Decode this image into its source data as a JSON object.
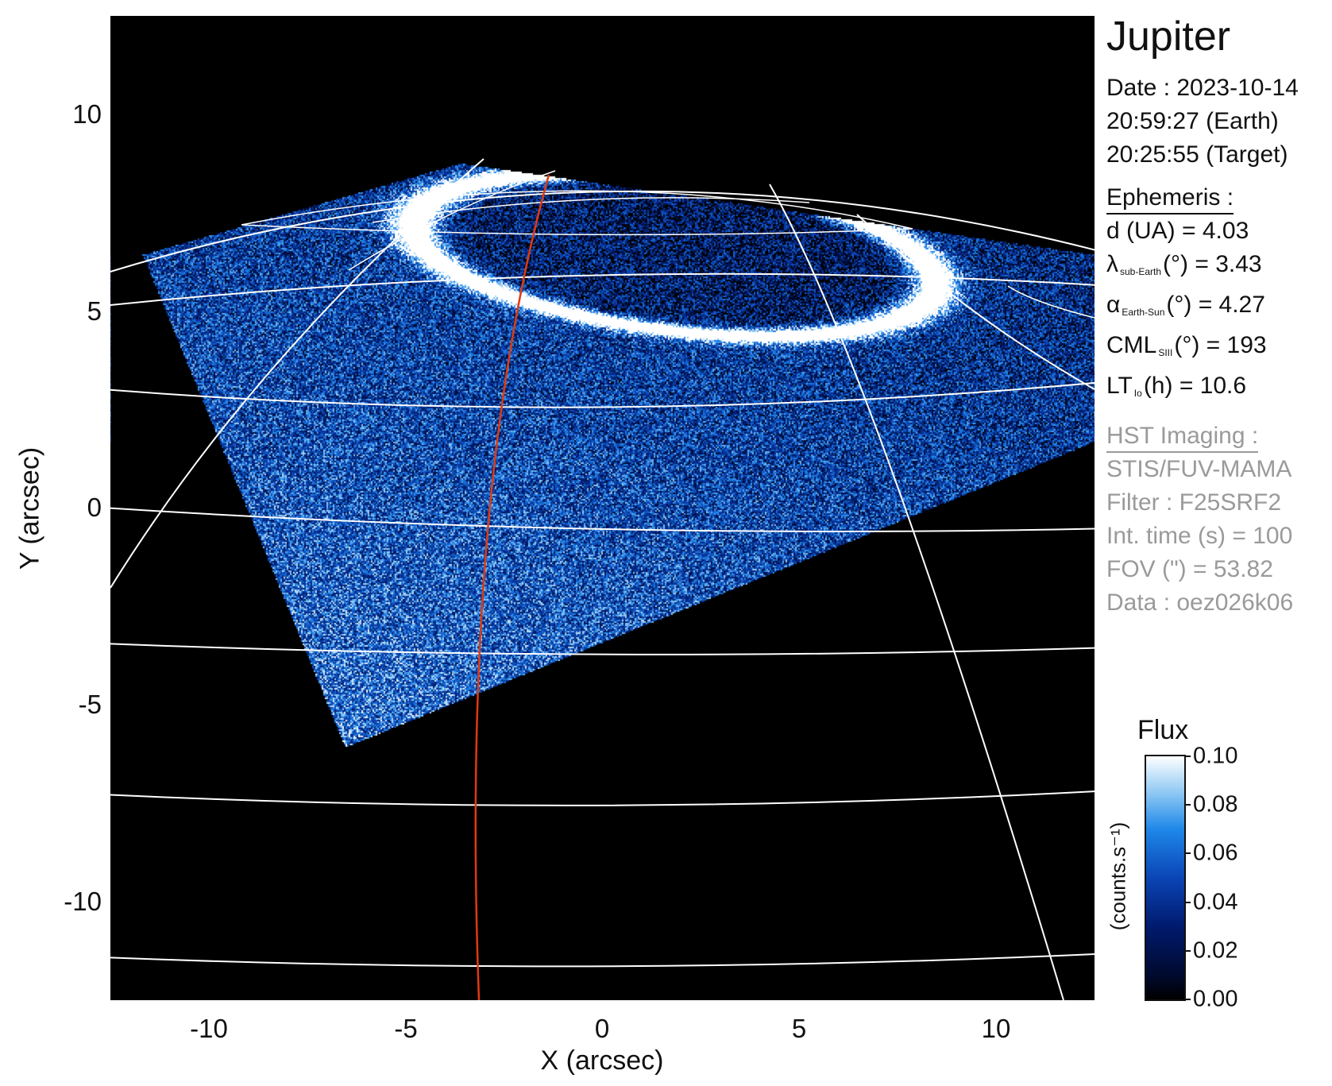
{
  "figure": {
    "title": "Jupiter",
    "xlabel": "X (arcsec)",
    "ylabel": "Y (arcsec)",
    "xlim": [
      -12.5,
      12.5
    ],
    "ylim": [
      -12.5,
      12.5
    ],
    "xticks": [
      "-10",
      "-5",
      "0",
      "5",
      "10"
    ],
    "yticks": [
      "10",
      "5",
      "0",
      "-5",
      "-10"
    ]
  },
  "observation": {
    "date": "Date : 2023-10-14",
    "time_earth": "20:59:27 (Earth)",
    "time_target": "20:25:55 (Target)"
  },
  "ephemeris": {
    "header": "Ephemeris :",
    "distance": "d (UA)    = 4.03",
    "lat_symbol": "λ",
    "lat_sub": "sub-Earth",
    "lat_value": "(°) = 3.43",
    "phase_symbol": "α",
    "phase_sub": "Earth-Sun",
    "phase_value": "(°) = 4.27",
    "cml_symbol": "CML",
    "cml_sub": "SIII",
    "cml_value": "(°) = 193",
    "lt_symbol": "LT",
    "lt_sub": "Io",
    "lt_value": "(h) = 10.6"
  },
  "hst": {
    "header": "HST Imaging :",
    "instrument": "STIS/FUV-MAMA",
    "filter": "Filter : F25SRF2",
    "int_time": "Int. time (s) = 100",
    "fov": "FOV (\") = 53.82",
    "data": "Data : oez026k06"
  },
  "colorbar": {
    "title": "Flux",
    "unit": "(counts.s⁻¹)",
    "range": [
      0.0,
      0.1
    ],
    "ticks": [
      "0.10",
      "0.08",
      "0.06",
      "0.04",
      "0.02",
      "0.00"
    ],
    "colors": [
      "#000000",
      "#001a6e",
      "#0b45b5",
      "#1e88e8",
      "#8fc8f4",
      "#ffffff"
    ]
  },
  "colors": {
    "grid": "#ffffff",
    "meridian_highlight": "#e03a10",
    "background": "#000000"
  }
}
